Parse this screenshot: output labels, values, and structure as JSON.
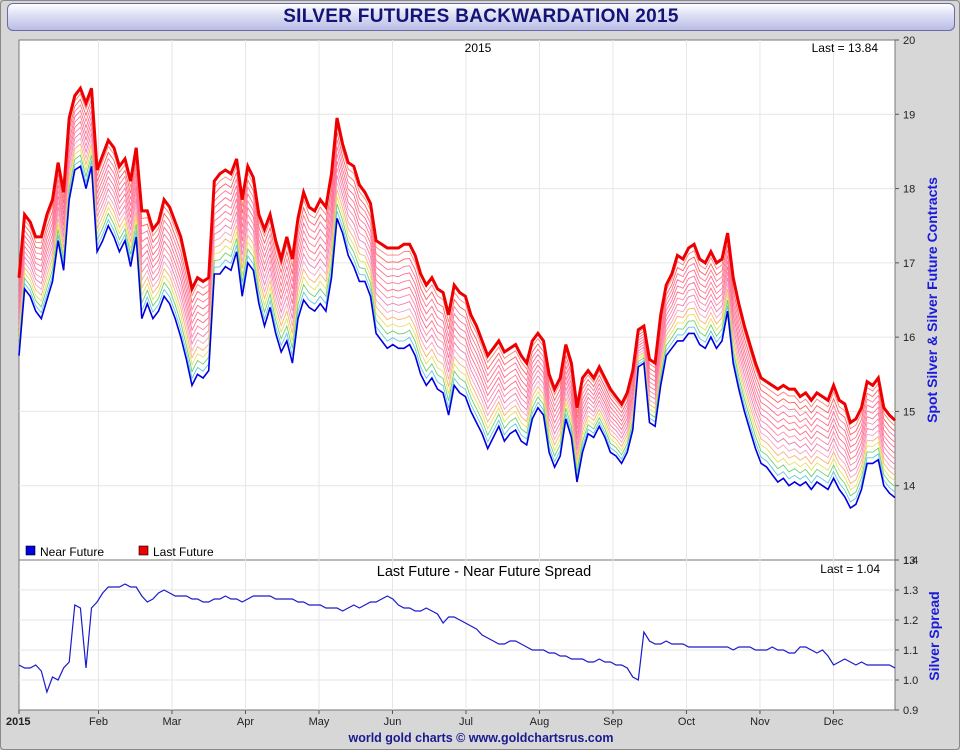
{
  "header": {
    "title": "SILVER FUTURES BACKWARDATION 2015"
  },
  "footer": {
    "credit": "world gold charts © www.goldchartsrus.com"
  },
  "colors": {
    "near": "#0000e0",
    "last": "#ee0000",
    "spread": "#1a1acc",
    "title": "#141478"
  },
  "chart_data": [
    {
      "type": "line",
      "title": "2015",
      "last_label": "Last = 13.84",
      "ylabel": "Spot Silver & Silver Future Contracts",
      "ylim": [
        13,
        20
      ],
      "yticks": [
        "13",
        "14",
        "15",
        "16",
        "17",
        "18",
        "19",
        "20"
      ],
      "xlabels": [
        "2015",
        "Feb",
        "Mar",
        "Apr",
        "May",
        "Jun",
        "Jul",
        "Aug",
        "Sep",
        "Oct",
        "Nov",
        "Dec"
      ],
      "legend": {
        "position": "bottom-left",
        "near": "Near Future",
        "last": "Last Future"
      },
      "series": [
        {
          "name": "Near Future",
          "color": "#0000e0",
          "values": [
            15.75,
            16.65,
            16.55,
            16.35,
            16.25,
            16.5,
            16.75,
            17.3,
            16.9,
            17.85,
            18.25,
            18.3,
            18.0,
            18.3,
            17.15,
            17.3,
            17.5,
            17.35,
            17.15,
            17.3,
            16.95,
            17.35,
            16.25,
            16.45,
            16.25,
            16.35,
            16.55,
            16.45,
            16.25,
            16.0,
            15.7,
            15.35,
            15.5,
            15.45,
            15.55,
            16.85,
            16.85,
            16.95,
            16.9,
            17.15,
            16.55,
            17.0,
            16.9,
            16.45,
            16.15,
            16.4,
            16.05,
            15.8,
            15.95,
            15.65,
            16.25,
            16.5,
            16.4,
            16.35,
            16.45,
            16.35,
            16.8,
            17.6,
            17.4,
            17.1,
            16.95,
            16.75,
            16.75,
            16.55,
            16.05,
            15.95,
            15.85,
            15.9,
            15.85,
            15.85,
            15.9,
            15.75,
            15.5,
            15.35,
            15.45,
            15.3,
            15.25,
            14.95,
            15.35,
            15.25,
            15.2,
            15.0,
            14.85,
            14.7,
            14.5,
            14.65,
            14.8,
            14.6,
            14.7,
            14.75,
            14.6,
            14.55,
            14.9,
            15.05,
            14.95,
            14.45,
            14.25,
            14.4,
            14.9,
            14.65,
            14.05,
            14.45,
            14.7,
            14.65,
            14.8,
            14.65,
            14.45,
            14.4,
            14.3,
            14.45,
            14.75,
            15.6,
            15.65,
            14.85,
            14.8,
            15.35,
            15.75,
            15.85,
            15.95,
            15.95,
            16.05,
            16.05,
            15.9,
            15.85,
            16.0,
            15.85,
            15.95,
            16.35,
            15.65,
            15.3,
            15.0,
            14.75,
            14.5,
            14.3,
            14.25,
            14.15,
            14.05,
            14.1,
            14.0,
            14.05,
            14.0,
            14.05,
            13.95,
            14.05,
            14.0,
            13.95,
            14.1,
            13.95,
            13.85,
            13.7,
            13.75,
            13.95,
            14.3,
            14.3,
            14.35,
            14.0,
            13.9,
            13.84
          ]
        },
        {
          "name": "Last Future",
          "color": "#ee0000",
          "values": [
            16.8,
            17.65,
            17.55,
            17.35,
            17.35,
            17.65,
            17.85,
            18.35,
            17.95,
            18.95,
            19.25,
            19.35,
            19.15,
            19.35,
            18.25,
            18.45,
            18.65,
            18.55,
            18.3,
            18.4,
            18.1,
            18.55,
            17.7,
            17.7,
            17.45,
            17.55,
            17.85,
            17.75,
            17.55,
            17.35,
            17.0,
            16.65,
            16.8,
            16.75,
            16.8,
            18.1,
            18.2,
            18.25,
            18.2,
            18.4,
            17.85,
            18.3,
            18.15,
            17.65,
            17.45,
            17.65,
            17.3,
            17.05,
            17.35,
            17.05,
            17.6,
            17.95,
            17.75,
            17.7,
            17.85,
            17.75,
            18.2,
            18.95,
            18.6,
            18.35,
            18.3,
            18.05,
            17.95,
            17.8,
            17.3,
            17.25,
            17.2,
            17.2,
            17.2,
            17.25,
            17.25,
            17.1,
            16.85,
            16.7,
            16.8,
            16.65,
            16.6,
            16.3,
            16.7,
            16.6,
            16.55,
            16.3,
            16.15,
            15.95,
            15.75,
            15.85,
            15.95,
            15.8,
            15.85,
            15.9,
            15.75,
            15.65,
            15.95,
            16.05,
            15.95,
            15.5,
            15.3,
            15.45,
            15.9,
            15.65,
            15.05,
            15.45,
            15.55,
            15.45,
            15.6,
            15.45,
            15.3,
            15.2,
            15.1,
            15.25,
            15.55,
            16.1,
            16.15,
            15.7,
            15.65,
            16.3,
            16.7,
            16.85,
            17.1,
            17.05,
            17.2,
            17.25,
            17.05,
            17.0,
            17.15,
            17.0,
            17.05,
            17.4,
            16.8,
            16.45,
            16.15,
            15.9,
            15.65,
            15.45,
            15.4,
            15.35,
            15.3,
            15.35,
            15.3,
            15.3,
            15.2,
            15.25,
            15.15,
            15.25,
            15.2,
            15.15,
            15.35,
            15.15,
            15.1,
            14.85,
            14.9,
            15.05,
            15.4,
            15.35,
            15.45,
            15.05,
            14.95,
            14.88
          ]
        }
      ]
    },
    {
      "type": "line",
      "title": "Last Future - Near Future Spread",
      "last_label": "Last = 1.04",
      "ylabel": "Silver Spread",
      "ylim": [
        0.9,
        1.4
      ],
      "yticks": [
        "0.9",
        "1.0",
        "1.1",
        "1.2",
        "1.3",
        "1.4"
      ],
      "series": [
        {
          "name": "Spread",
          "color": "#1a1acc",
          "values": [
            1.05,
            1.04,
            1.04,
            1.05,
            1.03,
            0.96,
            1.01,
            1.0,
            1.04,
            1.06,
            1.25,
            1.24,
            1.04,
            1.24,
            1.26,
            1.29,
            1.31,
            1.31,
            1.31,
            1.32,
            1.31,
            1.31,
            1.28,
            1.26,
            1.27,
            1.29,
            1.3,
            1.29,
            1.28,
            1.28,
            1.28,
            1.27,
            1.27,
            1.26,
            1.26,
            1.27,
            1.27,
            1.28,
            1.27,
            1.27,
            1.26,
            1.27,
            1.28,
            1.28,
            1.28,
            1.28,
            1.27,
            1.27,
            1.27,
            1.27,
            1.26,
            1.26,
            1.25,
            1.25,
            1.25,
            1.24,
            1.24,
            1.24,
            1.23,
            1.24,
            1.25,
            1.24,
            1.25,
            1.26,
            1.26,
            1.27,
            1.28,
            1.27,
            1.25,
            1.24,
            1.24,
            1.23,
            1.23,
            1.24,
            1.23,
            1.22,
            1.19,
            1.21,
            1.21,
            1.2,
            1.19,
            1.18,
            1.17,
            1.15,
            1.14,
            1.13,
            1.12,
            1.12,
            1.13,
            1.13,
            1.12,
            1.11,
            1.1,
            1.1,
            1.1,
            1.09,
            1.09,
            1.08,
            1.08,
            1.07,
            1.07,
            1.07,
            1.06,
            1.06,
            1.07,
            1.06,
            1.06,
            1.05,
            1.05,
            1.04,
            1.01,
            1.0,
            1.16,
            1.13,
            1.12,
            1.12,
            1.13,
            1.12,
            1.12,
            1.12,
            1.11,
            1.11,
            1.11,
            1.11,
            1.11,
            1.11,
            1.11,
            1.11,
            1.1,
            1.11,
            1.11,
            1.11,
            1.1,
            1.1,
            1.1,
            1.11,
            1.1,
            1.1,
            1.09,
            1.09,
            1.11,
            1.11,
            1.1,
            1.09,
            1.1,
            1.08,
            1.05,
            1.06,
            1.07,
            1.06,
            1.05,
            1.06,
            1.05,
            1.05,
            1.05,
            1.05,
            1.05,
            1.04
          ]
        }
      ]
    }
  ]
}
